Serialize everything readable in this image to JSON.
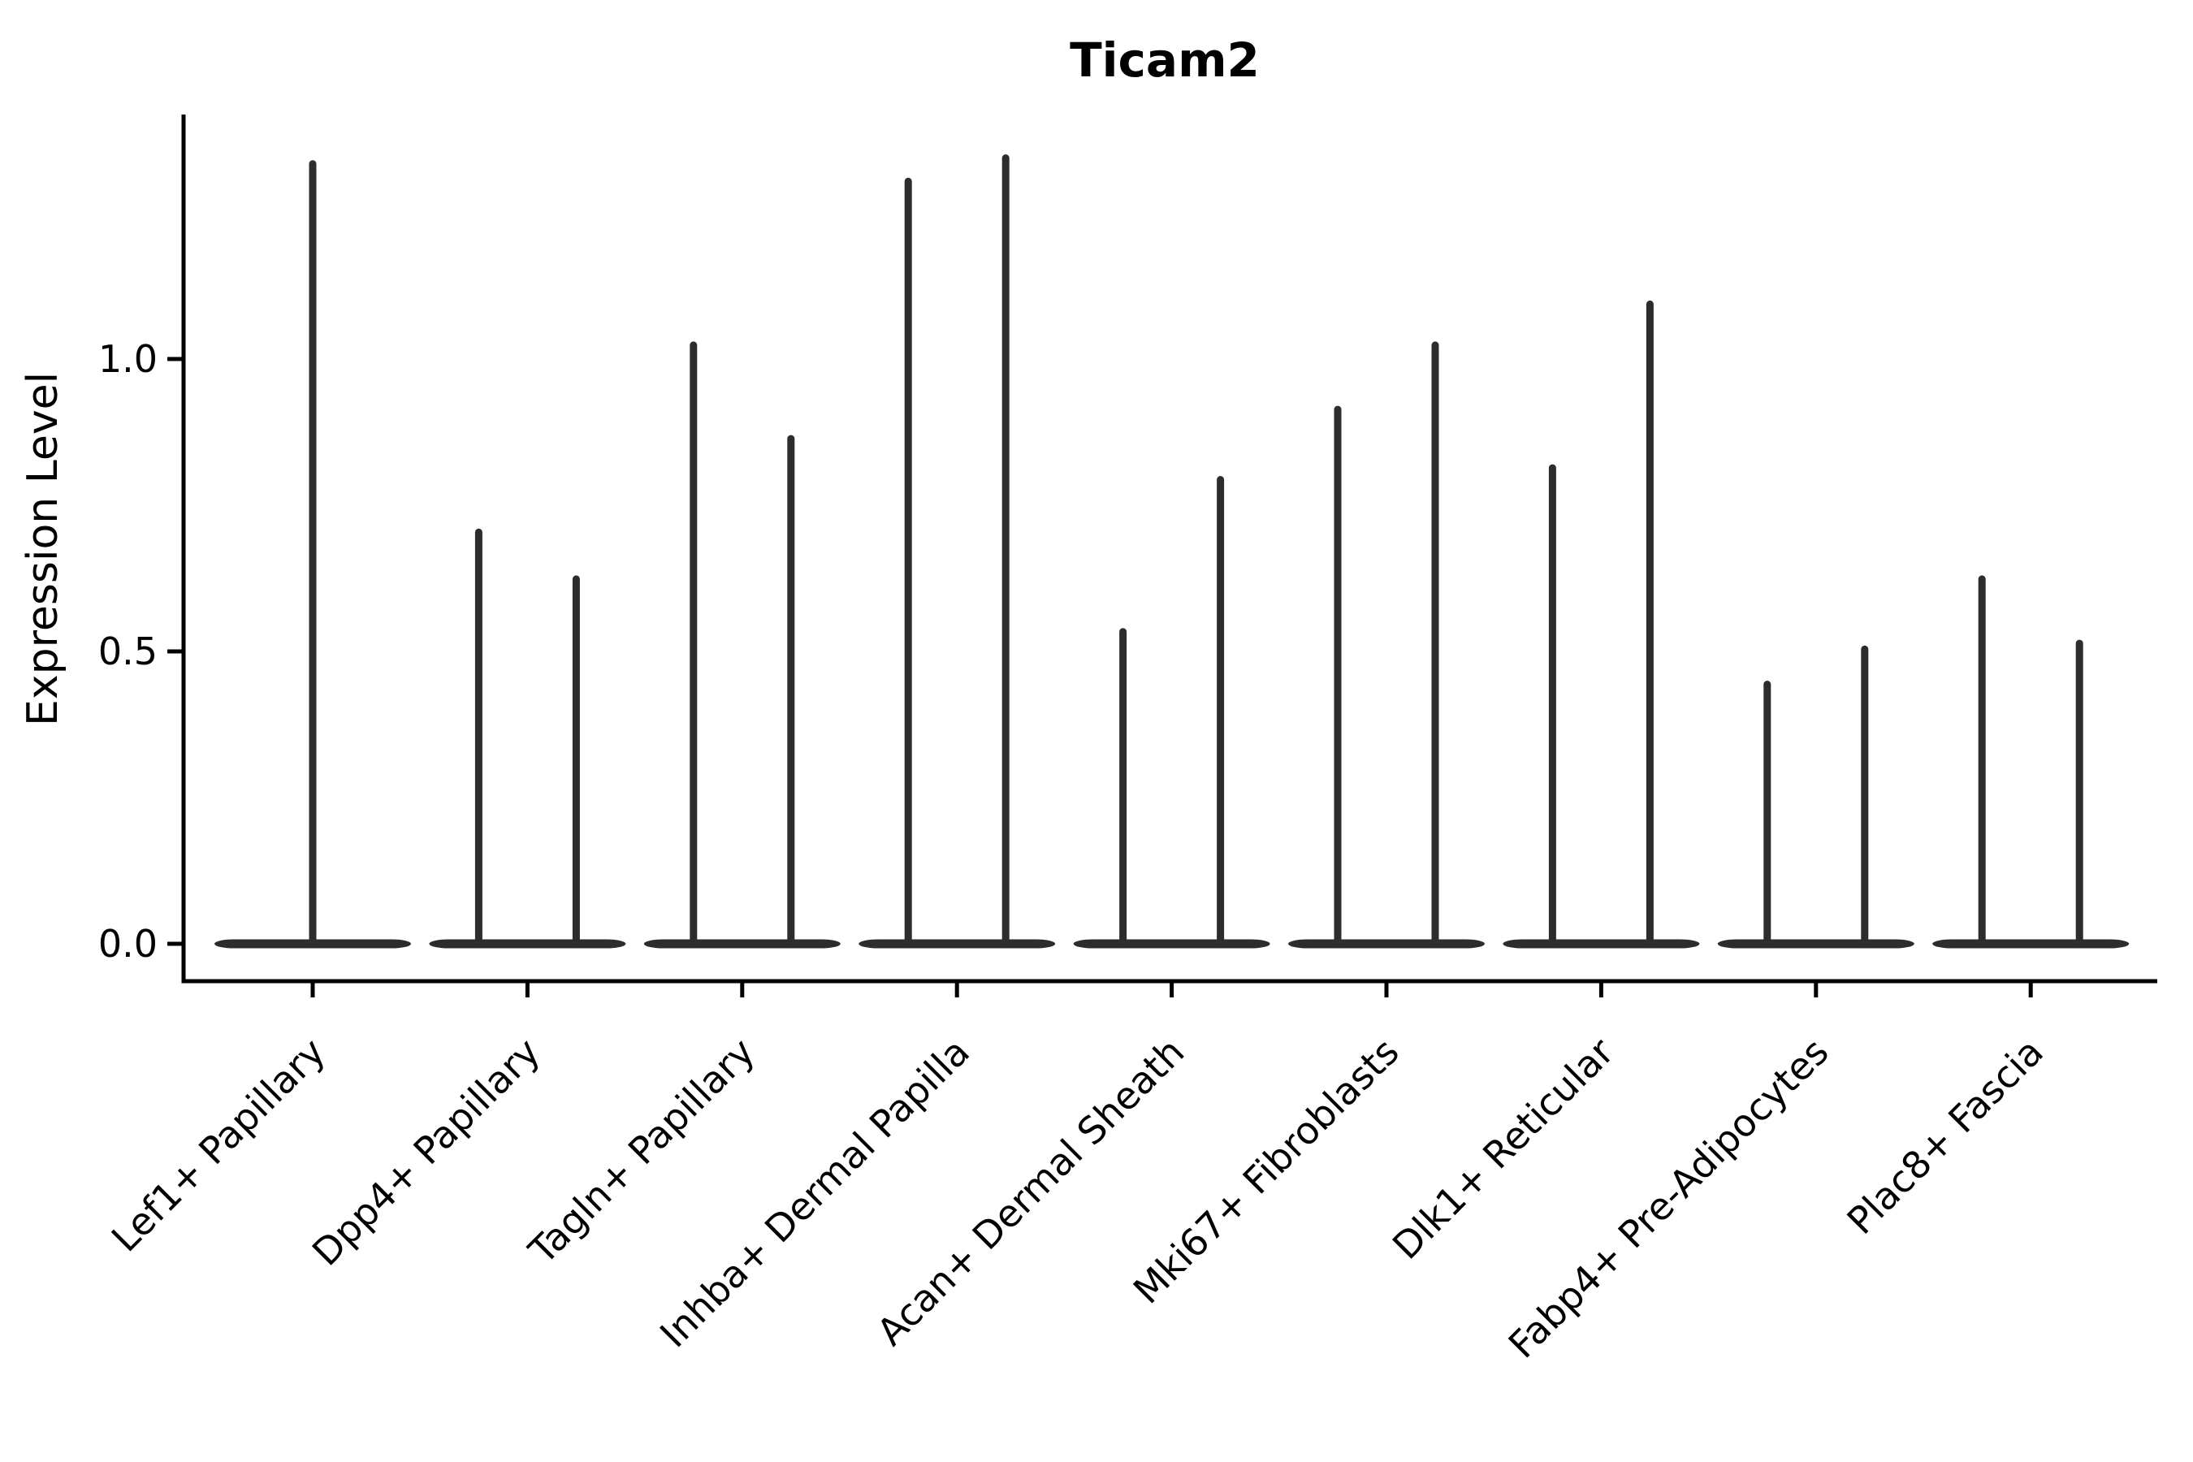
{
  "figure": {
    "title": "Ticam2",
    "y_axis": {
      "label": "Expression Level",
      "tick_labels": [
        "0.0",
        "0.5",
        "1.0"
      ]
    },
    "x_axis": {
      "tick_labels": [
        "Lef1+ Papillary",
        "Dpp4+ Papillary",
        "Tagln+ Papillary",
        "Inhba+ Dermal Papilla",
        "Acan+ Dermal Sheath",
        "Mki67+ Fibroblasts",
        "Dlk1+ Reticular",
        "Fabp4+ Pre-Adipocytes",
        "Plac8+ Fascia"
      ]
    }
  },
  "chart_data": {
    "type": "violin",
    "title": "Ticam2",
    "xlabel": "",
    "ylabel": "Expression Level",
    "ylim": [
      -0.06,
      1.42
    ],
    "ytick_values": [
      0.0,
      0.5,
      1.0
    ],
    "ytick_labels": [
      "0.0",
      "0.5",
      "1.0"
    ],
    "grid": false,
    "legend": "none",
    "categories": [
      "Lef1+ Papillary",
      "Dpp4+ Papillary",
      "Tagln+ Papillary",
      "Inhba+ Dermal Papilla",
      "Acan+ Dermal Sheath",
      "Mki67+ Fibroblasts",
      "Dlk1+ Reticular",
      "Fabp4+ Pre-Adipocytes",
      "Plac8+ Fascia"
    ],
    "series": [
      {
        "category": "Lef1+ Papillary",
        "violin_max_values": [
          1.34
        ]
      },
      {
        "category": "Dpp4+ Papillary",
        "violin_max_values": [
          0.71,
          0.63
        ]
      },
      {
        "category": "Tagln+ Papillary",
        "violin_max_values": [
          1.03,
          0.87
        ]
      },
      {
        "category": "Inhba+ Dermal Papilla",
        "violin_max_values": [
          1.31,
          1.35
        ]
      },
      {
        "category": "Acan+ Dermal Sheath",
        "violin_max_values": [
          0.54,
          0.8
        ]
      },
      {
        "category": "Mki67+ Fibroblasts",
        "violin_max_values": [
          0.92,
          1.03
        ]
      },
      {
        "category": "Dlk1+ Reticular",
        "violin_max_values": [
          0.82,
          1.1
        ]
      },
      {
        "category": "Fabp4+ Pre-Adipocytes",
        "violin_max_values": [
          0.45,
          0.51
        ]
      },
      {
        "category": "Plac8+ Fascia",
        "violin_max_values": [
          0.63,
          0.52
        ]
      }
    ]
  },
  "colors": {
    "violin": "#2d2d2d",
    "axis": "#000000",
    "text": "#000000",
    "background": "#ffffff"
  }
}
